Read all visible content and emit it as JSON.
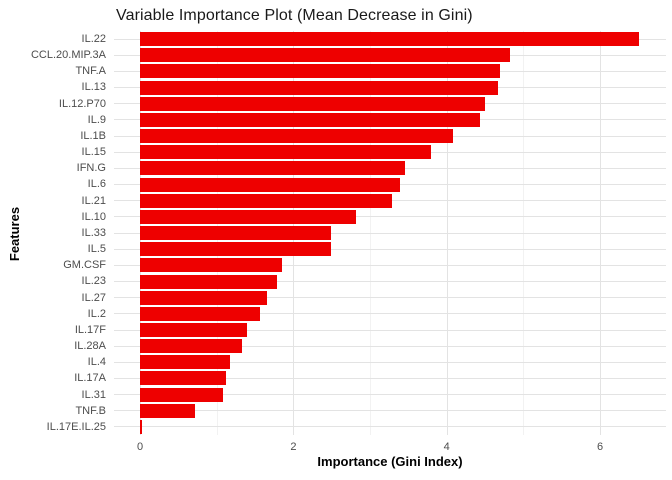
{
  "chart_data": {
    "type": "bar",
    "orientation": "horizontal",
    "title": "Variable Importance Plot (Mean Decrease in Gini)",
    "xlabel": "Importance (Gini Index)",
    "ylabel": "Features",
    "categories": [
      "IL.22",
      "CCL.20.MIP.3A",
      "TNF.A",
      "IL.13",
      "IL.12.P70",
      "IL.9",
      "IL.1B",
      "IL.15",
      "IFN.G",
      "IL.6",
      "IL.21",
      "IL.10",
      "IL.33",
      "IL.5",
      "GM.CSF",
      "IL.23",
      "IL.27",
      "IL.2",
      "IL.17F",
      "IL.28A",
      "IL.4",
      "IL.17A",
      "IL.31",
      "TNF.B",
      "IL.17E.IL.25"
    ],
    "values": [
      6.51,
      4.83,
      4.69,
      4.67,
      4.5,
      4.43,
      4.08,
      3.79,
      3.46,
      3.39,
      3.29,
      2.82,
      2.49,
      2.49,
      1.85,
      1.78,
      1.66,
      1.56,
      1.4,
      1.33,
      1.17,
      1.12,
      1.08,
      0.72,
      0.02
    ],
    "xticks": [
      0,
      2,
      4,
      6
    ],
    "minor_xticks": [
      1,
      3,
      5
    ],
    "x_domain": [
      -0.34,
      6.86
    ],
    "xlim": [
      0,
      6.86
    ],
    "grid": true,
    "legend": "none",
    "bar_color": "#ee0000",
    "grid_major_color": "#e3e3e3",
    "grid_minor_color": "#f2f2f2",
    "axis_text_color": "#4d4d4d"
  }
}
